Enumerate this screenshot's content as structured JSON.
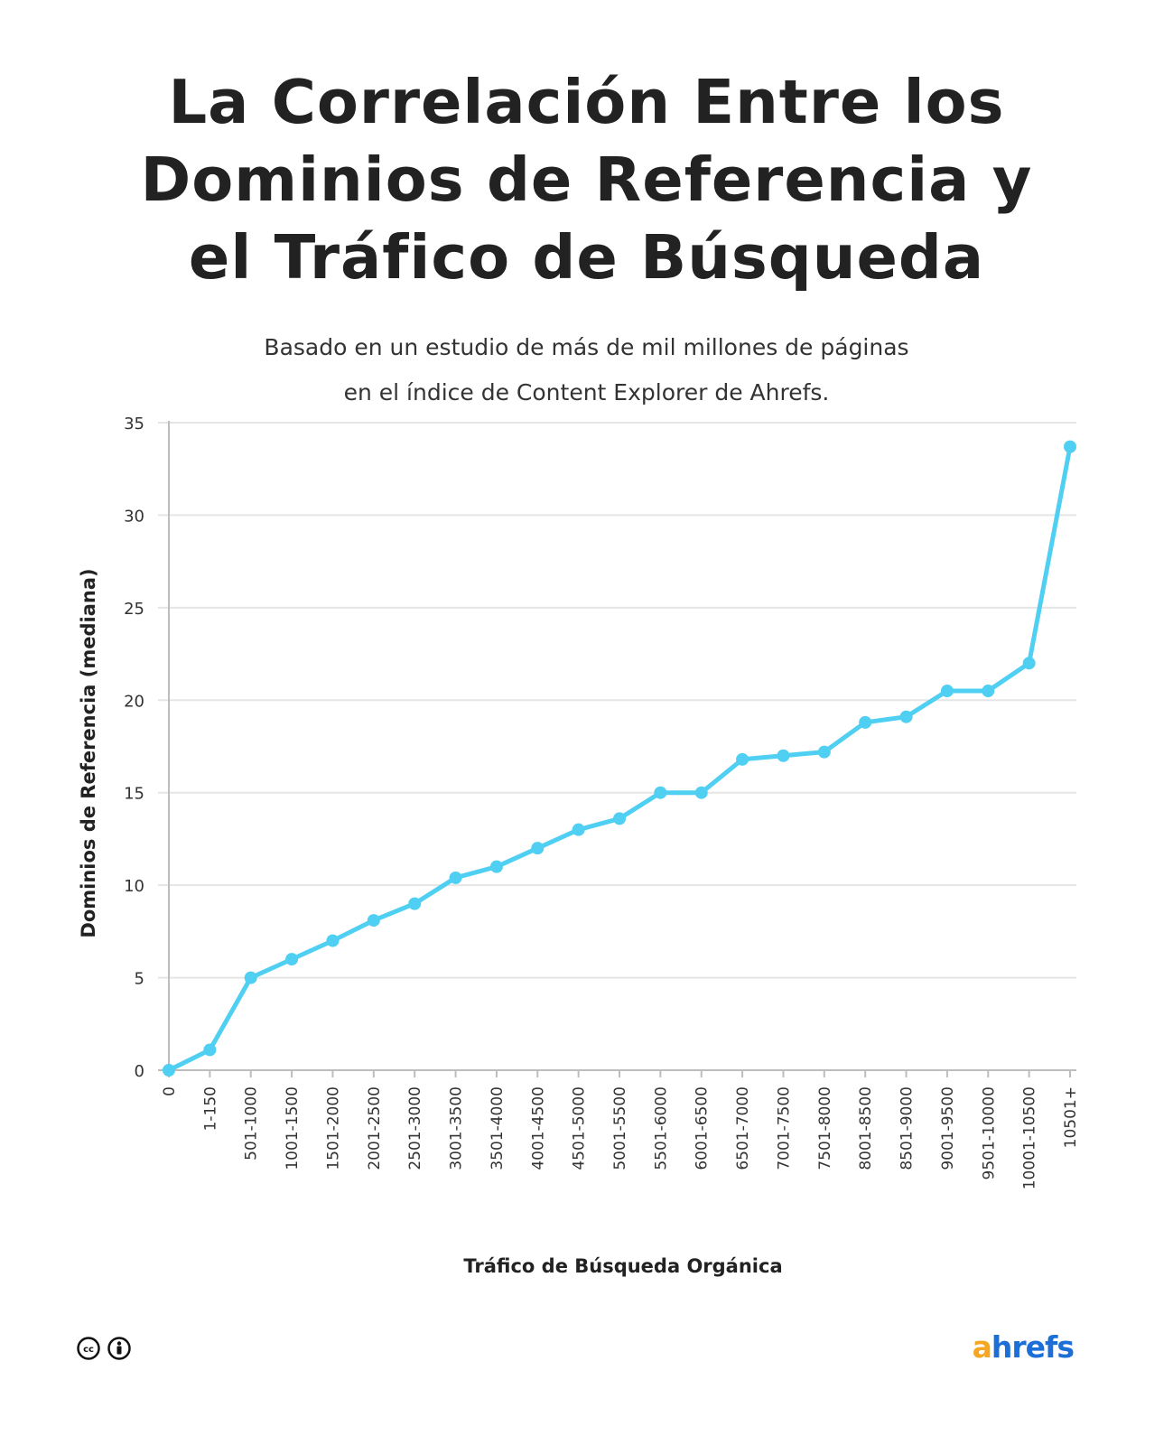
{
  "title_lines": [
    "La Correlación Entre los",
    "Dominios de Referencia y",
    "el Tráfico de Búsqueda"
  ],
  "subtitle_lines": [
    "Basado en un estudio de más de mil millones de páginas",
    "en el índice de Content Explorer de Ahrefs."
  ],
  "logo": {
    "first": "a",
    "rest": "hrefs"
  },
  "license_icons": [
    "creative-commons-icon",
    "attribution-icon"
  ],
  "colors": {
    "line": "#4fcff2",
    "grid": "#e5e5e5",
    "axis": "#bdbdbd",
    "logo_orange": "#f5a623",
    "logo_blue": "#1b6fd6"
  },
  "chart_data": {
    "type": "line",
    "title": "La Correlación Entre los Dominios de Referencia y el Tráfico de Búsqueda",
    "xlabel": "Tráfico de Búsqueda Orgánica",
    "ylabel": "Dominios de Referencia (mediana)",
    "ylim": [
      0,
      35
    ],
    "yticks": [
      0,
      5,
      10,
      15,
      20,
      25,
      30,
      35
    ],
    "grid": true,
    "categories": [
      "0",
      "1-150",
      "501-1000",
      "1001-1500",
      "1501-2000",
      "2001-2500",
      "2501-3000",
      "3001-3500",
      "3501-4000",
      "4001-4500",
      "4501-5000",
      "5001-5500",
      "5501-6000",
      "6001-6500",
      "6501-7000",
      "7001-7500",
      "7501-8000",
      "8001-8500",
      "8501-9000",
      "9001-9500",
      "9501-10000",
      "10001-10500",
      "10501+"
    ],
    "values": [
      0,
      1.1,
      5,
      6,
      7,
      8.1,
      9,
      10.4,
      11,
      12,
      13,
      13.6,
      15,
      15,
      16.8,
      17,
      17.2,
      18.8,
      19.1,
      20.5,
      20.5,
      22,
      33.7
    ]
  }
}
